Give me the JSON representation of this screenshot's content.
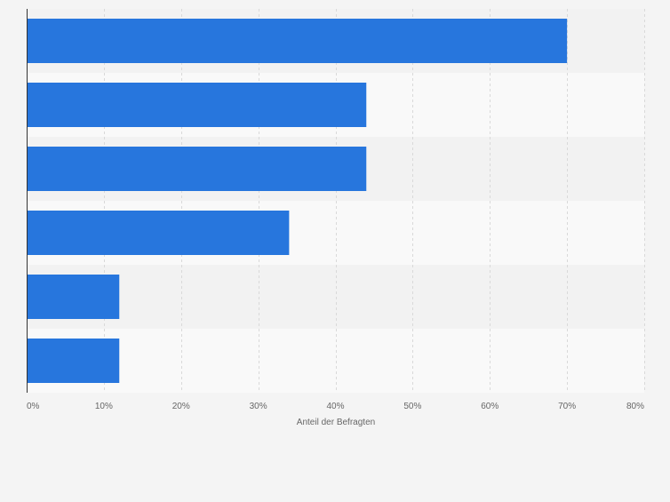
{
  "chart_data": {
    "type": "bar",
    "orientation": "horizontal",
    "categories": [
      "",
      "",
      "",
      "",
      "",
      ""
    ],
    "values": [
      70,
      44,
      44,
      34,
      12,
      12
    ],
    "title": "",
    "xlabel": "Anteil der Befragten",
    "ylabel": "",
    "xlim": [
      0,
      80
    ],
    "x_ticks": [
      0,
      10,
      20,
      30,
      40,
      50,
      60,
      70,
      80
    ],
    "x_tick_labels": [
      "0%",
      "10%",
      "20%",
      "30%",
      "40%",
      "50%",
      "60%",
      "70%",
      "80%"
    ],
    "grid": true,
    "legend": "none",
    "colors": {
      "bar": "#2776dd",
      "background": "#f4f4f4",
      "band_odd": "#f2f2f2",
      "band_even": "#f9f9f9",
      "grid": "#d9d9d9",
      "axis": "#333333",
      "tick_text": "#666666"
    }
  }
}
